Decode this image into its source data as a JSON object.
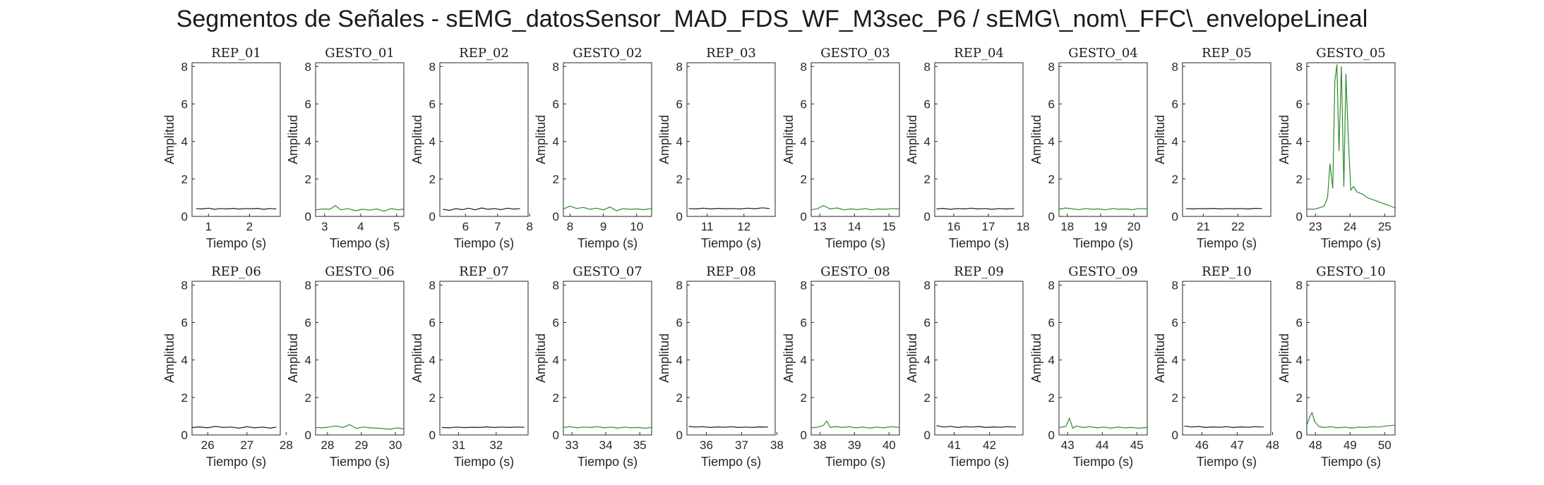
{
  "figure": {
    "title": "Segmentos de Señales - sEMG_datosSensor_MAD_FDS_WF_M3sec_P6 / sEMG\\_nom\\_FFC\\_envelopeLineal"
  },
  "colors": {
    "rep": "#1a1a1a",
    "gesto": "#2e8b2e",
    "axes": "#262626"
  },
  "chart_data": [
    {
      "type": "line",
      "title": "REP_01",
      "xlabel": "Tiempo (s)",
      "ylabel": "Amplitud",
      "xlim": [
        0.6,
        2.75
      ],
      "ylim": [
        0,
        8.2
      ],
      "xticks": [
        1,
        2
      ],
      "yticks": [
        0,
        2,
        4,
        6,
        8
      ],
      "color": "rep",
      "x": [
        0.7,
        0.85,
        1.0,
        1.15,
        1.3,
        1.45,
        1.6,
        1.75,
        1.9,
        2.05,
        2.2,
        2.35,
        2.5,
        2.65
      ],
      "y": [
        0.42,
        0.4,
        0.44,
        0.38,
        0.42,
        0.4,
        0.43,
        0.39,
        0.42,
        0.41,
        0.43,
        0.38,
        0.42,
        0.4
      ]
    },
    {
      "type": "line",
      "title": "GESTO_01",
      "xlabel": "Tiempo (s)",
      "ylabel": "Amplitud",
      "xlim": [
        2.75,
        5.2
      ],
      "ylim": [
        0,
        8.2
      ],
      "xticks": [
        3,
        4,
        5
      ],
      "yticks": [
        0,
        2,
        4,
        6,
        8
      ],
      "color": "gesto",
      "x": [
        2.75,
        2.95,
        3.15,
        3.3,
        3.45,
        3.65,
        3.85,
        4.05,
        4.25,
        4.45,
        4.65,
        4.85,
        5.05,
        5.2
      ],
      "y": [
        0.35,
        0.4,
        0.38,
        0.58,
        0.35,
        0.42,
        0.3,
        0.38,
        0.33,
        0.4,
        0.28,
        0.42,
        0.35,
        0.4
      ]
    },
    {
      "type": "line",
      "title": "REP_02",
      "xlabel": "Tiempo (s)",
      "ylabel": "Amplitud",
      "xlim": [
        5.2,
        7.95
      ],
      "ylim": [
        0,
        8.2
      ],
      "xticks": [
        6,
        7,
        8
      ],
      "yticks": [
        0,
        2,
        4,
        6,
        8
      ],
      "color": "rep",
      "x": [
        5.3,
        5.5,
        5.7,
        5.9,
        6.1,
        6.3,
        6.5,
        6.7,
        6.9,
        7.1,
        7.3,
        7.5,
        7.7
      ],
      "y": [
        0.38,
        0.32,
        0.42,
        0.36,
        0.44,
        0.35,
        0.45,
        0.38,
        0.42,
        0.36,
        0.44,
        0.39,
        0.42
      ]
    },
    {
      "type": "line",
      "title": "GESTO_02",
      "xlabel": "Tiempo (s)",
      "ylabel": "Amplitud",
      "xlim": [
        7.8,
        10.45
      ],
      "ylim": [
        0,
        8.2
      ],
      "xticks": [
        8,
        9,
        10
      ],
      "yticks": [
        0,
        2,
        4,
        6,
        8
      ],
      "color": "gesto",
      "x": [
        7.8,
        8.0,
        8.2,
        8.4,
        8.6,
        8.8,
        9.0,
        9.2,
        9.4,
        9.6,
        9.8,
        10.0,
        10.2,
        10.45
      ],
      "y": [
        0.4,
        0.55,
        0.42,
        0.48,
        0.38,
        0.44,
        0.35,
        0.5,
        0.3,
        0.42,
        0.38,
        0.4,
        0.36,
        0.42
      ]
    },
    {
      "type": "line",
      "title": "REP_03",
      "xlabel": "Tiempo (s)",
      "ylabel": "Amplitud",
      "xlim": [
        10.45,
        12.85
      ],
      "ylim": [
        0,
        8.2
      ],
      "xticks": [
        11,
        12
      ],
      "yticks": [
        0,
        2,
        4,
        6,
        8
      ],
      "color": "rep",
      "x": [
        10.5,
        10.7,
        10.9,
        11.1,
        11.3,
        11.5,
        11.7,
        11.9,
        12.1,
        12.3,
        12.5,
        12.7
      ],
      "y": [
        0.42,
        0.4,
        0.44,
        0.4,
        0.43,
        0.41,
        0.42,
        0.4,
        0.44,
        0.41,
        0.46,
        0.42
      ]
    },
    {
      "type": "line",
      "title": "GESTO_03",
      "xlabel": "Tiempo (s)",
      "ylabel": "Amplitud",
      "xlim": [
        12.75,
        15.3
      ],
      "ylim": [
        0,
        8.2
      ],
      "xticks": [
        13,
        14,
        15
      ],
      "yticks": [
        0,
        2,
        4,
        6,
        8
      ],
      "color": "gesto",
      "x": [
        12.75,
        12.95,
        13.1,
        13.3,
        13.5,
        13.7,
        13.9,
        14.1,
        14.3,
        14.5,
        14.7,
        14.9,
        15.1,
        15.3
      ],
      "y": [
        0.35,
        0.42,
        0.58,
        0.4,
        0.45,
        0.35,
        0.4,
        0.36,
        0.42,
        0.35,
        0.4,
        0.38,
        0.42,
        0.4
      ]
    },
    {
      "type": "line",
      "title": "REP_04",
      "xlabel": "Tiempo (s)",
      "ylabel": "Amplitud",
      "xlim": [
        15.45,
        18.0
      ],
      "ylim": [
        0,
        8.2
      ],
      "xticks": [
        16,
        17,
        18
      ],
      "yticks": [
        0,
        2,
        4,
        6,
        8
      ],
      "color": "rep",
      "x": [
        15.5,
        15.7,
        15.9,
        16.1,
        16.3,
        16.5,
        16.7,
        16.9,
        17.1,
        17.3,
        17.5,
        17.75
      ],
      "y": [
        0.4,
        0.43,
        0.38,
        0.42,
        0.4,
        0.44,
        0.4,
        0.42,
        0.38,
        0.42,
        0.4,
        0.42
      ]
    },
    {
      "type": "line",
      "title": "GESTO_04",
      "xlabel": "Tiempo (s)",
      "ylabel": "Amplitud",
      "xlim": [
        17.75,
        20.4
      ],
      "ylim": [
        0,
        8.2
      ],
      "xticks": [
        18,
        19,
        20
      ],
      "yticks": [
        0,
        2,
        4,
        6,
        8
      ],
      "color": "gesto",
      "x": [
        17.75,
        17.95,
        18.15,
        18.35,
        18.55,
        18.75,
        18.95,
        19.15,
        19.35,
        19.55,
        19.75,
        19.95,
        20.15,
        20.4
      ],
      "y": [
        0.38,
        0.45,
        0.4,
        0.36,
        0.42,
        0.38,
        0.4,
        0.35,
        0.42,
        0.38,
        0.4,
        0.36,
        0.42,
        0.4
      ]
    },
    {
      "type": "line",
      "title": "REP_05",
      "xlabel": "Tiempo (s)",
      "ylabel": "Amplitud",
      "xlim": [
        20.4,
        22.95
      ],
      "ylim": [
        0,
        8.2
      ],
      "xticks": [
        21,
        22
      ],
      "yticks": [
        0,
        2,
        4,
        6,
        8
      ],
      "color": "rep",
      "x": [
        20.5,
        20.7,
        20.9,
        21.1,
        21.3,
        21.5,
        21.7,
        21.9,
        22.1,
        22.3,
        22.5,
        22.7
      ],
      "y": [
        0.42,
        0.4,
        0.42,
        0.41,
        0.43,
        0.4,
        0.42,
        0.41,
        0.42,
        0.4,
        0.43,
        0.42
      ]
    },
    {
      "type": "line",
      "title": "GESTO_05",
      "xlabel": "Tiempo (s)",
      "ylabel": "Amplitud",
      "xlim": [
        22.75,
        25.3
      ],
      "ylim": [
        0,
        8.2
      ],
      "xticks": [
        23,
        24,
        25
      ],
      "yticks": [
        0,
        2,
        4,
        6,
        8
      ],
      "color": "gesto",
      "x": [
        22.75,
        22.95,
        23.1,
        23.25,
        23.35,
        23.42,
        23.5,
        23.56,
        23.62,
        23.68,
        23.75,
        23.82,
        23.88,
        23.95,
        24.02,
        24.1,
        24.2,
        24.35,
        24.5,
        24.65,
        24.8,
        24.95,
        25.1,
        25.3
      ],
      "y": [
        0.4,
        0.38,
        0.45,
        0.55,
        1.0,
        2.8,
        1.5,
        7.2,
        8.1,
        3.5,
        8.0,
        1.6,
        7.6,
        4.2,
        1.4,
        1.6,
        1.3,
        1.2,
        1.0,
        0.9,
        0.8,
        0.7,
        0.6,
        0.45
      ]
    },
    {
      "type": "line",
      "title": "REP_06",
      "xlabel": "Tiempo (s)",
      "ylabel": "Amplitud",
      "xlim": [
        25.6,
        27.85
      ],
      "ylim": [
        0,
        8.2
      ],
      "xticks": [
        26,
        27,
        28
      ],
      "yticks": [
        0,
        2,
        4,
        6,
        8
      ],
      "color": "rep",
      "x": [
        25.6,
        25.8,
        26.0,
        26.2,
        26.4,
        26.6,
        26.8,
        27.0,
        27.2,
        27.4,
        27.6,
        27.75
      ],
      "y": [
        0.4,
        0.43,
        0.38,
        0.46,
        0.4,
        0.42,
        0.36,
        0.44,
        0.38,
        0.42,
        0.36,
        0.42
      ]
    },
    {
      "type": "line",
      "title": "GESTO_06",
      "xlabel": "Tiempo (s)",
      "ylabel": "Amplitud",
      "xlim": [
        27.65,
        30.25
      ],
      "ylim": [
        0,
        8.2
      ],
      "xticks": [
        28,
        29,
        30
      ],
      "yticks": [
        0,
        2,
        4,
        6,
        8
      ],
      "color": "gesto",
      "x": [
        27.65,
        27.85,
        28.05,
        28.25,
        28.45,
        28.65,
        28.85,
        29.05,
        29.25,
        29.45,
        29.65,
        29.85,
        30.05,
        30.25
      ],
      "y": [
        0.4,
        0.38,
        0.42,
        0.48,
        0.4,
        0.55,
        0.35,
        0.42,
        0.38,
        0.36,
        0.34,
        0.3,
        0.38,
        0.32
      ]
    },
    {
      "type": "line",
      "title": "REP_07",
      "xlabel": "Tiempo (s)",
      "ylabel": "Amplitud",
      "xlim": [
        30.5,
        32.85
      ],
      "ylim": [
        0,
        8.2
      ],
      "xticks": [
        31,
        32
      ],
      "yticks": [
        0,
        2,
        4,
        6,
        8
      ],
      "color": "rep",
      "x": [
        30.55,
        30.75,
        30.95,
        31.15,
        31.35,
        31.55,
        31.75,
        31.95,
        32.15,
        32.35,
        32.55,
        32.75
      ],
      "y": [
        0.4,
        0.38,
        0.42,
        0.39,
        0.41,
        0.4,
        0.43,
        0.4,
        0.42,
        0.4,
        0.42,
        0.41
      ]
    },
    {
      "type": "line",
      "title": "GESTO_07",
      "xlabel": "Tiempo (s)",
      "ylabel": "Amplitud",
      "xlim": [
        32.75,
        35.35
      ],
      "ylim": [
        0,
        8.2
      ],
      "xticks": [
        33,
        34,
        35
      ],
      "yticks": [
        0,
        2,
        4,
        6,
        8
      ],
      "color": "gesto",
      "x": [
        32.75,
        32.95,
        33.15,
        33.35,
        33.55,
        33.75,
        33.95,
        34.15,
        34.35,
        34.55,
        34.75,
        34.95,
        35.15,
        35.35
      ],
      "y": [
        0.4,
        0.44,
        0.38,
        0.42,
        0.4,
        0.44,
        0.38,
        0.42,
        0.36,
        0.42,
        0.38,
        0.4,
        0.36,
        0.4
      ]
    },
    {
      "type": "line",
      "title": "REP_08",
      "xlabel": "Tiempo (s)",
      "ylabel": "Amplitud",
      "xlim": [
        35.45,
        37.95
      ],
      "ylim": [
        0,
        8.2
      ],
      "xticks": [
        36,
        37,
        38
      ],
      "yticks": [
        0,
        2,
        4,
        6,
        8
      ],
      "color": "rep",
      "x": [
        35.5,
        35.7,
        35.9,
        36.1,
        36.3,
        36.5,
        36.7,
        36.9,
        37.1,
        37.3,
        37.5,
        37.75
      ],
      "y": [
        0.45,
        0.42,
        0.44,
        0.4,
        0.43,
        0.41,
        0.44,
        0.4,
        0.42,
        0.4,
        0.43,
        0.42
      ]
    },
    {
      "type": "line",
      "title": "GESTO_08",
      "xlabel": "Tiempo (s)",
      "ylabel": "Amplitud",
      "xlim": [
        37.75,
        40.3
      ],
      "ylim": [
        0,
        8.2
      ],
      "xticks": [
        38,
        39,
        40
      ],
      "yticks": [
        0,
        2,
        4,
        6,
        8
      ],
      "color": "gesto",
      "x": [
        37.75,
        37.95,
        38.1,
        38.2,
        38.3,
        38.45,
        38.65,
        38.85,
        39.05,
        39.25,
        39.45,
        39.65,
        39.85,
        40.05,
        40.3
      ],
      "y": [
        0.38,
        0.42,
        0.5,
        0.75,
        0.4,
        0.45,
        0.4,
        0.44,
        0.38,
        0.42,
        0.36,
        0.42,
        0.38,
        0.44,
        0.4
      ]
    },
    {
      "type": "line",
      "title": "REP_09",
      "xlabel": "Tiempo (s)",
      "ylabel": "Amplitud",
      "xlim": [
        40.45,
        42.95
      ],
      "ylim": [
        0,
        8.2
      ],
      "xticks": [
        41,
        42
      ],
      "yticks": [
        0,
        2,
        4,
        6,
        8
      ],
      "color": "rep",
      "x": [
        40.5,
        40.7,
        40.9,
        41.1,
        41.3,
        41.5,
        41.7,
        41.9,
        42.1,
        42.3,
        42.5,
        42.75
      ],
      "y": [
        0.5,
        0.42,
        0.46,
        0.4,
        0.44,
        0.42,
        0.45,
        0.4,
        0.43,
        0.41,
        0.44,
        0.42
      ]
    },
    {
      "type": "line",
      "title": "GESTO_09",
      "xlabel": "Tiempo (s)",
      "ylabel": "Amplitud",
      "xlim": [
        42.75,
        45.3
      ],
      "ylim": [
        0,
        8.2
      ],
      "xticks": [
        43,
        44,
        45
      ],
      "yticks": [
        0,
        2,
        4,
        6,
        8
      ],
      "color": "gesto",
      "x": [
        42.75,
        42.95,
        43.05,
        43.15,
        43.25,
        43.45,
        43.65,
        43.85,
        44.05,
        44.25,
        44.45,
        44.65,
        44.85,
        45.05,
        45.3
      ],
      "y": [
        0.4,
        0.45,
        0.9,
        0.35,
        0.48,
        0.4,
        0.44,
        0.38,
        0.42,
        0.36,
        0.42,
        0.38,
        0.4,
        0.36,
        0.4
      ]
    },
    {
      "type": "line",
      "title": "REP_10",
      "xlabel": "Tiempo (s)",
      "ylabel": "Amplitud",
      "xlim": [
        45.45,
        47.95
      ],
      "ylim": [
        0,
        8.2
      ],
      "xticks": [
        46,
        47,
        48
      ],
      "yticks": [
        0,
        2,
        4,
        6,
        8
      ],
      "color": "rep",
      "x": [
        45.5,
        45.7,
        45.9,
        46.1,
        46.3,
        46.5,
        46.7,
        46.9,
        47.1,
        47.3,
        47.5,
        47.75
      ],
      "y": [
        0.48,
        0.42,
        0.45,
        0.4,
        0.43,
        0.41,
        0.44,
        0.4,
        0.43,
        0.41,
        0.44,
        0.42
      ]
    },
    {
      "type": "line",
      "title": "GESTO_10",
      "xlabel": "Tiempo (s)",
      "ylabel": "Amplitud",
      "xlim": [
        47.75,
        50.3
      ],
      "ylim": [
        0,
        8.2
      ],
      "xticks": [
        48,
        49,
        50
      ],
      "yticks": [
        0,
        2,
        4,
        6,
        8
      ],
      "color": "gesto",
      "x": [
        47.75,
        47.82,
        47.9,
        47.98,
        48.1,
        48.25,
        48.45,
        48.65,
        48.85,
        49.05,
        49.25,
        49.45,
        49.65,
        49.85,
        50.05,
        50.3
      ],
      "y": [
        0.5,
        0.9,
        1.2,
        0.7,
        0.45,
        0.4,
        0.44,
        0.38,
        0.42,
        0.36,
        0.42,
        0.4,
        0.44,
        0.42,
        0.48,
        0.52
      ]
    }
  ]
}
